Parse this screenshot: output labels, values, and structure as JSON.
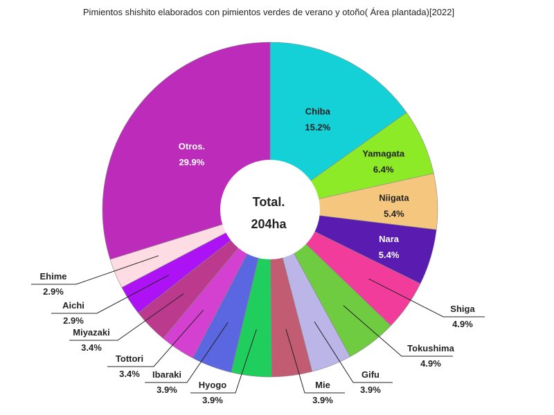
{
  "chart_data": {
    "type": "pie",
    "donut": true,
    "title": "Pimientos shishito elaborados con pimientos verdes de verano y otoño( Área plantada)[2022]",
    "center_label": [
      "Total.",
      "204ha"
    ],
    "slices": [
      {
        "name": "Chiba",
        "percent_label": "15.2%",
        "value": 15.2,
        "color": "#13D1D6"
      },
      {
        "name": "Yamagata",
        "percent_label": "6.4%",
        "value": 6.4,
        "color": "#8CEB26"
      },
      {
        "name": "Niigata",
        "percent_label": "5.4%",
        "value": 5.4,
        "color": "#F5C77E"
      },
      {
        "name": "Nara",
        "percent_label": "5.4%",
        "value": 5.4,
        "color": "#5A1CB0"
      },
      {
        "name": "Shiga",
        "percent_label": "4.9%",
        "value": 4.9,
        "color": "#F23C9B"
      },
      {
        "name": "Tokushima",
        "percent_label": "4.9%",
        "value": 4.9,
        "color": "#6FCB3F"
      },
      {
        "name": "Gifu",
        "percent_label": "3.9%",
        "value": 3.9,
        "color": "#BBB5E8"
      },
      {
        "name": "Mie",
        "percent_label": "3.9%",
        "value": 3.9,
        "color": "#C25C72"
      },
      {
        "name": "Hyogo",
        "percent_label": "3.9%",
        "value": 3.9,
        "color": "#20CE5E"
      },
      {
        "name": "Ibaraki",
        "percent_label": "3.9%",
        "value": 3.9,
        "color": "#5B67E0"
      },
      {
        "name": "Tottori",
        "percent_label": "3.4%",
        "value": 3.4,
        "color": "#D440D0"
      },
      {
        "name": "Miyazaki",
        "percent_label": "3.4%",
        "value": 3.4,
        "color": "#BB3A8E"
      },
      {
        "name": "Aichi",
        "percent_label": "2.9%",
        "value": 2.9,
        "color": "#AD12F5"
      },
      {
        "name": "Ehime",
        "percent_label": "2.9%",
        "value": 2.9,
        "color": "#FDDDE3"
      },
      {
        "name": "Otros.",
        "percent_label": "29.9%",
        "value": 29.9,
        "color": "#BD2BBB"
      }
    ]
  }
}
